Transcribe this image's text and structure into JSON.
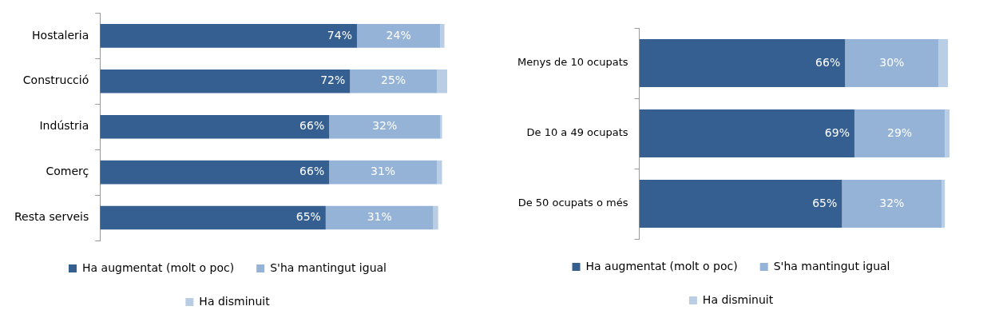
{
  "chart_data": [
    {
      "type": "bar",
      "orientation": "horizontal",
      "stacked": true,
      "categories": [
        "Hostaleria",
        "Construcció",
        "Indústria",
        "Comerç",
        "Resta serveis"
      ],
      "xlim": [
        0,
        100
      ],
      "tick_labels": "y",
      "legend": "bottom",
      "series": [
        {
          "name": "Ha augmentat (molt o poc)",
          "color": "#355f91",
          "values": [
            74,
            72,
            66,
            66,
            65
          ],
          "value_labels": [
            "74%",
            "72%",
            "66%",
            "66%",
            "65%"
          ]
        },
        {
          "name": "S'ha mantingut igual",
          "color": "#95b3d7",
          "values": [
            24,
            25,
            32,
            31,
            31
          ],
          "value_labels": [
            "24%",
            "25%",
            "32%",
            "31%",
            "31%"
          ]
        },
        {
          "name": "Ha disminuit",
          "color": "#b9cde5",
          "values": [
            1.2,
            3,
            0.5,
            1.5,
            1.4
          ]
        }
      ]
    },
    {
      "type": "bar",
      "orientation": "horizontal",
      "stacked": true,
      "categories": [
        "Menys de 10 ocupats",
        "De 10 a 49 ocupats",
        "De 50 ocupats o més"
      ],
      "xlim": [
        0,
        100
      ],
      "tick_labels": "y",
      "legend": "bottom",
      "series": [
        {
          "name": "Ha augmentat (molt o poc)",
          "color": "#355f91",
          "values": [
            66,
            69,
            65
          ],
          "value_labels": [
            "66%",
            "69%",
            "65%"
          ]
        },
        {
          "name": "S'ha mantingut igual",
          "color": "#95b3d7",
          "values": [
            30,
            29,
            32
          ],
          "value_labels": [
            "30%",
            "29%",
            "32%"
          ]
        },
        {
          "name": "Ha disminuit",
          "color": "#b9cde5",
          "values": [
            3,
            1.5,
            1
          ]
        }
      ]
    }
  ]
}
